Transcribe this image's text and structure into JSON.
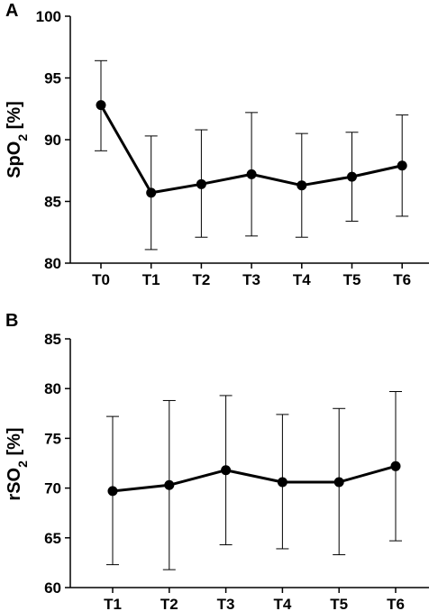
{
  "chart_data": [
    {
      "panel_label": "A",
      "type": "line",
      "ylabel_main": "SpO",
      "ylabel_sub": "2",
      "ylabel_suffix": " [%]",
      "ylim": [
        80,
        100
      ],
      "yticks": [
        80,
        85,
        90,
        95,
        100
      ],
      "categories": [
        "T0",
        "T1",
        "T2",
        "T3",
        "T4",
        "T5",
        "T6"
      ],
      "values": [
        92.8,
        85.7,
        86.4,
        87.2,
        86.3,
        87.0,
        87.9
      ],
      "error_upper": [
        96.4,
        90.3,
        90.8,
        92.2,
        90.5,
        90.6,
        92.0
      ],
      "error_lower": [
        89.1,
        81.1,
        82.1,
        82.2,
        82.1,
        83.4,
        83.8
      ]
    },
    {
      "panel_label": "B",
      "type": "line",
      "ylabel_main": "rSO",
      "ylabel_sub": "2",
      "ylabel_suffix": " [%]",
      "ylim": [
        60,
        85
      ],
      "yticks": [
        60,
        65,
        70,
        75,
        80,
        85
      ],
      "categories": [
        "T1",
        "T2",
        "T3",
        "T4",
        "T5",
        "T6"
      ],
      "values": [
        69.7,
        70.3,
        71.8,
        70.6,
        70.6,
        72.2
      ],
      "error_upper": [
        77.2,
        78.8,
        79.3,
        77.4,
        78.0,
        79.7
      ],
      "error_lower": [
        62.3,
        61.8,
        64.3,
        63.9,
        63.3,
        64.7
      ]
    }
  ]
}
